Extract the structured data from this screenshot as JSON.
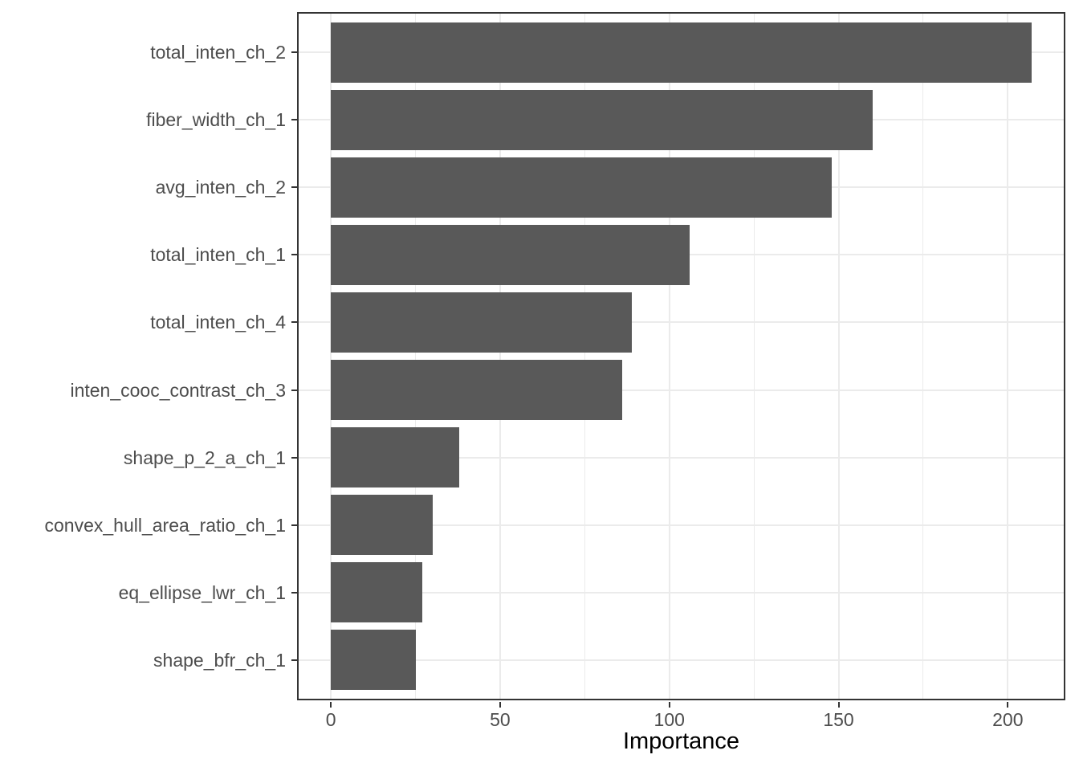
{
  "figure": {
    "background": "#FFFFFF"
  },
  "chart_data": {
    "type": "bar",
    "orientation": "horizontal",
    "title": "",
    "xlabel": "Importance",
    "ylabel": "",
    "categories": [
      "total_inten_ch_2",
      "fiber_width_ch_1",
      "avg_inten_ch_2",
      "total_inten_ch_1",
      "total_inten_ch_4",
      "inten_cooc_contrast_ch_3",
      "shape_p_2_a_ch_1",
      "convex_hull_area_ratio_ch_1",
      "eq_ellipse_lwr_ch_1",
      "shape_bfr_ch_1"
    ],
    "values": [
      207,
      160,
      148,
      106,
      89,
      86,
      38,
      30,
      27,
      25
    ],
    "x_tick_labels": [
      "0",
      "50",
      "100",
      "150",
      "200"
    ],
    "x_ticks": [
      0,
      50,
      100,
      150,
      200
    ],
    "x_minor_ticks": [
      25,
      75,
      125,
      175
    ],
    "xlim": [
      -10,
      217
    ],
    "grid": "on",
    "legend": "none",
    "colors": {
      "bar_fill": "#595959",
      "panel_border": "#333333",
      "grid_major": "#EBEBEB",
      "grid_minor": "#EBEBEB",
      "tick_mark": "#333333",
      "axis_text": "#4D4D4D",
      "axis_title": "#000000"
    }
  }
}
